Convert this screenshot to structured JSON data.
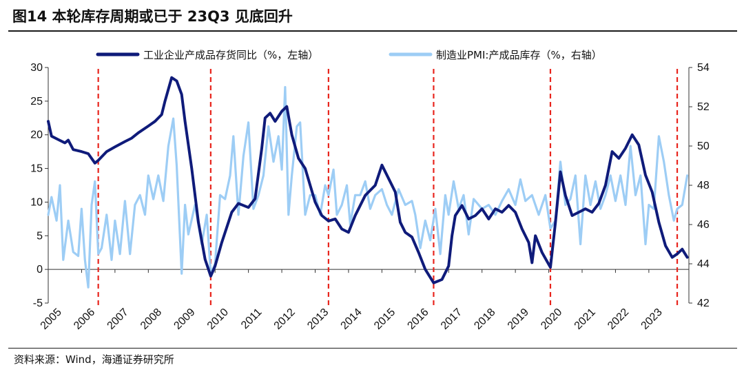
{
  "header": {
    "title": "图14 本轮库存周期或已于 23Q3 见底回升"
  },
  "footer": {
    "source": "资料来源：Wind，海通证券研究所"
  },
  "colors": {
    "left_series": "#0f1b7a",
    "right_series": "#9dcdf5",
    "marker_line": "#e8241c"
  },
  "chart_data": {
    "type": "line",
    "title": "本轮库存周期或已于 23Q3 见底回升",
    "x_labels": [
      "2005",
      "2006",
      "2007",
      "2008",
      "2009",
      "2010",
      "2011",
      "2012",
      "2013",
      "2014",
      "2015",
      "2016",
      "2017",
      "2018",
      "2019",
      "2020",
      "2021",
      "2022",
      "2023"
    ],
    "x_range": [
      2005.0,
      2024.2
    ],
    "left_axis": {
      "range": [
        -5,
        30
      ],
      "ticks": [
        -5,
        0,
        5,
        10,
        15,
        20,
        25,
        30
      ]
    },
    "right_axis": {
      "range": [
        42,
        54
      ],
      "ticks": [
        42,
        44,
        46,
        48,
        50,
        52,
        54
      ]
    },
    "cycle_markers": [
      2006.5,
      2009.87,
      2013.4,
      2016.55,
      2020.05,
      2023.85
    ],
    "series": [
      {
        "name": "工业企业产成品存货同比（%，左轴）",
        "axis": "left",
        "points": [
          [
            2005.0,
            22.0
          ],
          [
            2005.1,
            19.8
          ],
          [
            2005.3,
            19.3
          ],
          [
            2005.5,
            18.8
          ],
          [
            2005.6,
            19.2
          ],
          [
            2005.75,
            17.8
          ],
          [
            2006.0,
            17.5
          ],
          [
            2006.2,
            17.2
          ],
          [
            2006.4,
            15.8
          ],
          [
            2006.5,
            16.2
          ],
          [
            2006.75,
            17.5
          ],
          [
            2007.0,
            18.2
          ],
          [
            2007.3,
            19.0
          ],
          [
            2007.5,
            19.5
          ],
          [
            2007.7,
            20.3
          ],
          [
            2008.0,
            21.3
          ],
          [
            2008.2,
            22.0
          ],
          [
            2008.4,
            23.0
          ],
          [
            2008.5,
            25.0
          ],
          [
            2008.7,
            28.5
          ],
          [
            2008.85,
            28.0
          ],
          [
            2009.0,
            26.0
          ],
          [
            2009.1,
            22.0
          ],
          [
            2009.3,
            15.0
          ],
          [
            2009.5,
            7.0
          ],
          [
            2009.7,
            1.5
          ],
          [
            2009.87,
            -1.0
          ],
          [
            2010.0,
            0.5
          ],
          [
            2010.2,
            4.0
          ],
          [
            2010.5,
            8.5
          ],
          [
            2010.7,
            9.8
          ],
          [
            2011.0,
            9.2
          ],
          [
            2011.2,
            10.5
          ],
          [
            2011.4,
            18.0
          ],
          [
            2011.5,
            22.5
          ],
          [
            2011.65,
            23.2
          ],
          [
            2011.8,
            22.0
          ],
          [
            2012.0,
            23.5
          ],
          [
            2012.15,
            24.2
          ],
          [
            2012.3,
            20.0
          ],
          [
            2012.5,
            16.5
          ],
          [
            2012.7,
            15.0
          ],
          [
            2013.0,
            10.0
          ],
          [
            2013.2,
            8.0
          ],
          [
            2013.4,
            7.2
          ],
          [
            2013.6,
            7.5
          ],
          [
            2013.8,
            6.0
          ],
          [
            2014.0,
            5.5
          ],
          [
            2014.2,
            8.0
          ],
          [
            2014.5,
            11.0
          ],
          [
            2014.8,
            12.5
          ],
          [
            2015.0,
            15.5
          ],
          [
            2015.2,
            13.5
          ],
          [
            2015.4,
            11.5
          ],
          [
            2015.55,
            7.0
          ],
          [
            2015.7,
            5.5
          ],
          [
            2015.9,
            4.8
          ],
          [
            2016.1,
            2.5
          ],
          [
            2016.3,
            0.0
          ],
          [
            2016.55,
            -2.0
          ],
          [
            2016.8,
            -1.5
          ],
          [
            2017.0,
            0.5
          ],
          [
            2017.1,
            5.0
          ],
          [
            2017.2,
            8.0
          ],
          [
            2017.4,
            9.5
          ],
          [
            2017.6,
            7.5
          ],
          [
            2017.8,
            8.0
          ],
          [
            2018.0,
            9.0
          ],
          [
            2018.2,
            7.5
          ],
          [
            2018.4,
            9.0
          ],
          [
            2018.6,
            8.5
          ],
          [
            2018.8,
            9.5
          ],
          [
            2019.0,
            8.5
          ],
          [
            2019.2,
            6.0
          ],
          [
            2019.4,
            4.0
          ],
          [
            2019.5,
            1.0
          ],
          [
            2019.6,
            5.0
          ],
          [
            2019.8,
            2.5
          ],
          [
            2020.05,
            0.3
          ],
          [
            2020.2,
            7.0
          ],
          [
            2020.35,
            14.5
          ],
          [
            2020.5,
            11.0
          ],
          [
            2020.7,
            8.0
          ],
          [
            2020.9,
            8.5
          ],
          [
            2021.1,
            9.0
          ],
          [
            2021.3,
            8.5
          ],
          [
            2021.5,
            9.8
          ],
          [
            2021.7,
            12.5
          ],
          [
            2021.9,
            17.5
          ],
          [
            2022.1,
            16.5
          ],
          [
            2022.3,
            18.0
          ],
          [
            2022.5,
            20.0
          ],
          [
            2022.7,
            18.5
          ],
          [
            2022.9,
            14.0
          ],
          [
            2023.1,
            11.5
          ],
          [
            2023.3,
            7.0
          ],
          [
            2023.5,
            3.5
          ],
          [
            2023.7,
            1.8
          ],
          [
            2023.85,
            2.3
          ],
          [
            2024.0,
            3.0
          ],
          [
            2024.15,
            1.8
          ]
        ]
      },
      {
        "name": "制造业PMI:产成品库存（%，右轴）",
        "axis": "right",
        "points": [
          [
            2005.0,
            46.5
          ],
          [
            2005.1,
            47.4
          ],
          [
            2005.25,
            46.2
          ],
          [
            2005.35,
            48.0
          ],
          [
            2005.45,
            44.2
          ],
          [
            2005.6,
            46.2
          ],
          [
            2005.75,
            44.6
          ],
          [
            2005.9,
            44.4
          ],
          [
            2006.0,
            46.8
          ],
          [
            2006.1,
            44.2
          ],
          [
            2006.2,
            42.8
          ],
          [
            2006.3,
            47.0
          ],
          [
            2006.4,
            48.2
          ],
          [
            2006.5,
            44.5
          ],
          [
            2006.6,
            44.8
          ],
          [
            2006.75,
            46.5
          ],
          [
            2006.9,
            44.2
          ],
          [
            2007.0,
            46.2
          ],
          [
            2007.15,
            44.5
          ],
          [
            2007.3,
            47.2
          ],
          [
            2007.45,
            44.5
          ],
          [
            2007.6,
            47.0
          ],
          [
            2007.75,
            47.5
          ],
          [
            2007.9,
            46.5
          ],
          [
            2008.0,
            48.5
          ],
          [
            2008.15,
            47.3
          ],
          [
            2008.3,
            48.5
          ],
          [
            2008.45,
            47.2
          ],
          [
            2008.6,
            50.0
          ],
          [
            2008.75,
            51.4
          ],
          [
            2008.85,
            49.0
          ],
          [
            2009.0,
            43.5
          ],
          [
            2009.1,
            47.0
          ],
          [
            2009.2,
            45.5
          ],
          [
            2009.4,
            47.0
          ],
          [
            2009.6,
            45.0
          ],
          [
            2009.75,
            46.5
          ],
          [
            2009.87,
            43.5
          ],
          [
            2010.0,
            44.0
          ],
          [
            2010.15,
            47.5
          ],
          [
            2010.3,
            47.3
          ],
          [
            2010.45,
            48.5
          ],
          [
            2010.55,
            50.5
          ],
          [
            2010.7,
            46.5
          ],
          [
            2010.85,
            49.5
          ],
          [
            2011.0,
            51.2
          ],
          [
            2011.15,
            46.8
          ],
          [
            2011.3,
            47.5
          ],
          [
            2011.45,
            48.5
          ],
          [
            2011.6,
            51.0
          ],
          [
            2011.75,
            49.2
          ],
          [
            2011.9,
            50.5
          ],
          [
            2012.0,
            48.8
          ],
          [
            2012.1,
            53.0
          ],
          [
            2012.2,
            46.5
          ],
          [
            2012.3,
            48.5
          ],
          [
            2012.45,
            51.0
          ],
          [
            2012.55,
            51.2
          ],
          [
            2012.7,
            46.5
          ],
          [
            2012.85,
            47.5
          ],
          [
            2013.0,
            47.5
          ],
          [
            2013.15,
            46.5
          ],
          [
            2013.3,
            48.0
          ],
          [
            2013.4,
            47.5
          ],
          [
            2013.55,
            48.8
          ],
          [
            2013.65,
            46.5
          ],
          [
            2013.8,
            47.0
          ],
          [
            2013.95,
            48.0
          ],
          [
            2014.05,
            46.0
          ],
          [
            2014.2,
            47.5
          ],
          [
            2014.35,
            47.5
          ],
          [
            2014.5,
            48.2
          ],
          [
            2014.65,
            46.8
          ],
          [
            2014.8,
            47.5
          ],
          [
            2015.0,
            47.8
          ],
          [
            2015.15,
            47.0
          ],
          [
            2015.3,
            46.5
          ],
          [
            2015.5,
            47.8
          ],
          [
            2015.7,
            47.0
          ],
          [
            2015.9,
            47.2
          ],
          [
            2016.0,
            46.5
          ],
          [
            2016.15,
            44.8
          ],
          [
            2016.3,
            46.2
          ],
          [
            2016.45,
            45.2
          ],
          [
            2016.6,
            46.8
          ],
          [
            2016.75,
            44.5
          ],
          [
            2016.9,
            47.5
          ],
          [
            2017.0,
            46.5
          ],
          [
            2017.15,
            48.2
          ],
          [
            2017.3,
            46.8
          ],
          [
            2017.45,
            47.5
          ],
          [
            2017.6,
            45.5
          ],
          [
            2017.75,
            47.3
          ],
          [
            2018.0,
            46.8
          ],
          [
            2018.2,
            47.0
          ],
          [
            2018.4,
            46.5
          ],
          [
            2018.6,
            47.2
          ],
          [
            2018.8,
            47.8
          ],
          [
            2019.0,
            47.0
          ],
          [
            2019.15,
            48.3
          ],
          [
            2019.3,
            47.2
          ],
          [
            2019.5,
            47.5
          ],
          [
            2019.7,
            46.5
          ],
          [
            2019.9,
            47.5
          ],
          [
            2020.05,
            45.8
          ],
          [
            2020.2,
            46.2
          ],
          [
            2020.35,
            49.2
          ],
          [
            2020.5,
            47.0
          ],
          [
            2020.65,
            47.3
          ],
          [
            2020.8,
            48.5
          ],
          [
            2020.95,
            45.0
          ],
          [
            2021.1,
            48.5
          ],
          [
            2021.25,
            47.0
          ],
          [
            2021.4,
            48.2
          ],
          [
            2021.55,
            46.8
          ],
          [
            2021.7,
            47.5
          ],
          [
            2021.85,
            48.5
          ],
          [
            2022.0,
            47.2
          ],
          [
            2022.15,
            48.5
          ],
          [
            2022.3,
            47.0
          ],
          [
            2022.45,
            50.0
          ],
          [
            2022.6,
            47.5
          ],
          [
            2022.75,
            48.5
          ],
          [
            2022.9,
            45.0
          ],
          [
            2023.0,
            47.0
          ],
          [
            2023.15,
            46.8
          ],
          [
            2023.3,
            50.5
          ],
          [
            2023.45,
            49.2
          ],
          [
            2023.6,
            47.5
          ],
          [
            2023.75,
            46.2
          ],
          [
            2023.85,
            46.8
          ],
          [
            2024.0,
            47.0
          ],
          [
            2024.15,
            48.5
          ]
        ]
      }
    ]
  }
}
